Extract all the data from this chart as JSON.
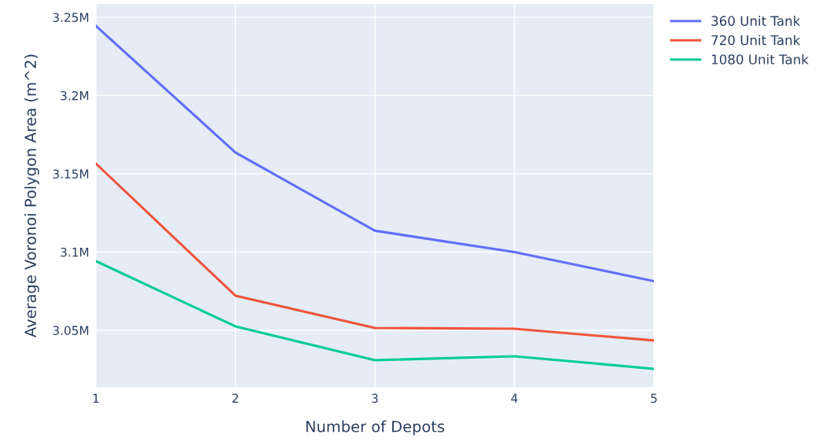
{
  "chart_data": {
    "type": "line",
    "xlabel": "Number of Depots",
    "ylabel": "Average Voronoi Polygon Area (m^2)",
    "x": [
      1,
      2,
      3,
      4,
      5
    ],
    "series": [
      {
        "name": "360 Unit Tank",
        "color": "#636efa",
        "values": [
          3244500,
          3163600,
          3113600,
          3100000,
          3081400
        ]
      },
      {
        "name": "720 Unit Tank",
        "color": "#ef553b",
        "values": [
          3156500,
          3072100,
          3051500,
          3051000,
          3043500
        ]
      },
      {
        "name": "1080 Unit Tank",
        "color": "#00cc96",
        "values": [
          3094200,
          3052500,
          3030900,
          3033400,
          3025400
        ]
      }
    ],
    "xlim": [
      1,
      5
    ],
    "xticks": [
      1,
      2,
      3,
      4,
      5
    ],
    "ylim": [
      3013800,
      3258500
    ],
    "yticks": [
      {
        "value": 3050000,
        "label": "3.05M"
      },
      {
        "value": 3100000,
        "label": "3.1M"
      },
      {
        "value": 3150000,
        "label": "3.15M"
      },
      {
        "value": 3200000,
        "label": "3.2M"
      },
      {
        "value": 3250000,
        "label": "3.25M"
      }
    ],
    "grid": true,
    "legend": "top right",
    "marker": "none",
    "line_style": "solid"
  }
}
